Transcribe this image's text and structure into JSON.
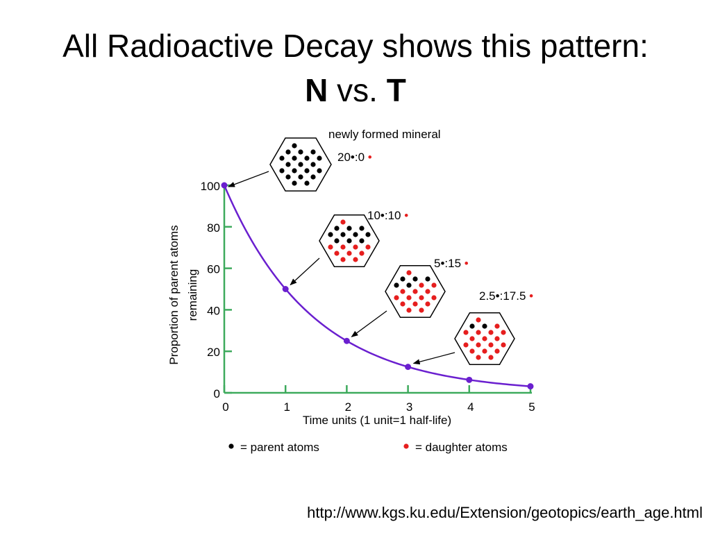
{
  "slide": {
    "title_line1": "All Radioactive Decay shows this pattern:",
    "title_n": "N",
    "title_vs": " vs. ",
    "title_t": "T",
    "source_url": "http://www.kgs.ku.edu/Extension/geotopics/earth_age.html"
  },
  "colors": {
    "curve": "#6a1fcf",
    "axes": "#3daa5c",
    "parent": "#000000",
    "daughter": "#e61e1e"
  },
  "chart_data": {
    "type": "line",
    "x": [
      0,
      1,
      2,
      3,
      4,
      5
    ],
    "values": [
      100,
      50,
      25,
      12.5,
      6.25,
      3.125
    ],
    "xlabel": "Time units (1 unit=1 half-life)",
    "ylabel": "Proportion of parent atoms remaining",
    "ylabel_line1": "Proportion of parent atoms",
    "ylabel_line2": "remaining",
    "xlim": [
      0,
      5
    ],
    "ylim": [
      0,
      100
    ],
    "xticks": [
      "0",
      "1",
      "2",
      "3",
      "4",
      "5"
    ],
    "yticks": [
      "0",
      "20",
      "40",
      "60",
      "80",
      "100"
    ],
    "grid": false,
    "annotations": {
      "newly_formed": "newly formed mineral",
      "ratios": [
        {
          "parent": "20",
          "daughter": "0"
        },
        {
          "parent": "10",
          "daughter": "10"
        },
        {
          "parent": "5",
          "daughter": "15"
        },
        {
          "parent": "2.5",
          "daughter": "17.5"
        }
      ]
    },
    "legend": {
      "parent": "= parent atoms",
      "daughter": "= daughter atoms"
    }
  }
}
